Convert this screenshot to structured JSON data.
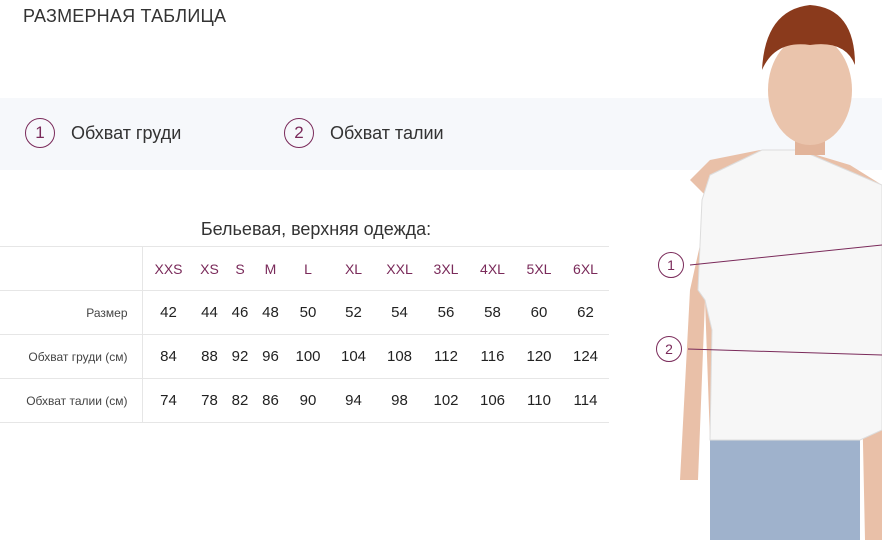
{
  "title": "РАЗМЕРНАЯ ТАБЛИЦА",
  "legend": [
    {
      "num": "1",
      "label": "Обхват груди"
    },
    {
      "num": "2",
      "label": "Обхват талии"
    }
  ],
  "caption": "Бельевая, верхняя одежда:",
  "accent": "#7a2a5a",
  "table": {
    "sizes": [
      "XXS",
      "XS",
      "S",
      "M",
      "L",
      "XL",
      "XXL",
      "3XL",
      "4XL",
      "5XL",
      "6XL"
    ],
    "rows": [
      {
        "label": "Размер",
        "values": [
          "42",
          "44",
          "46",
          "48",
          "50",
          "52",
          "54",
          "56",
          "58",
          "60",
          "62"
        ]
      },
      {
        "label": "Обхват груди (см)",
        "values": [
          "84",
          "88",
          "92",
          "96",
          "100",
          "104",
          "108",
          "112",
          "116",
          "120",
          "124"
        ]
      },
      {
        "label": "Обхват талии (см)",
        "values": [
          "74",
          "78",
          "82",
          "86",
          "90",
          "94",
          "98",
          "102",
          "106",
          "110",
          "114"
        ]
      }
    ]
  },
  "photo_markers": [
    "1",
    "2"
  ]
}
